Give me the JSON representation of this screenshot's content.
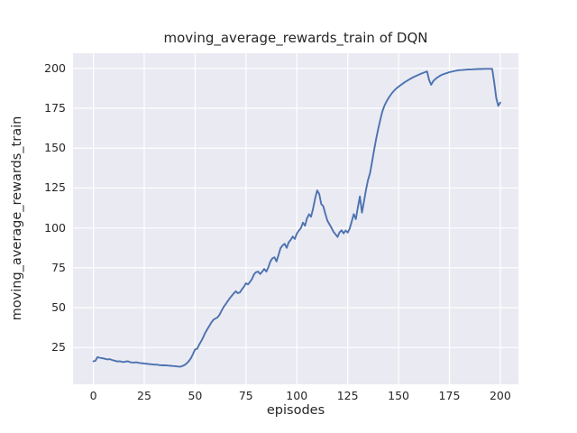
{
  "colors": {
    "line": "#4c72b0",
    "axes_background": "#eaeaf2",
    "grid": "#ffffff",
    "text": "#262626"
  },
  "chart_data": {
    "type": "line",
    "title": "moving_average_rewards_train of DQN",
    "xlabel": "episodes",
    "ylabel": "moving_average_rewards_train",
    "xticks": [
      0,
      25,
      50,
      75,
      100,
      125,
      150,
      175,
      200
    ],
    "yticks": [
      25,
      50,
      75,
      100,
      125,
      150,
      175,
      200
    ],
    "xlim": [
      -10,
      208.9
    ],
    "ylim": [
      2,
      209.5
    ],
    "grid": true,
    "legend_position": "none",
    "series": [
      {
        "name": "moving_average_rewards_train",
        "color": "#4c72b0",
        "points": [
          [
            0,
            16.4
          ],
          [
            1,
            16.7
          ],
          [
            2,
            19.0
          ],
          [
            3,
            18.7
          ],
          [
            4,
            18.4
          ],
          [
            5,
            18.2
          ],
          [
            6,
            17.9
          ],
          [
            7,
            17.6
          ],
          [
            8,
            17.8
          ],
          [
            9,
            17.3
          ],
          [
            10,
            16.9
          ],
          [
            11,
            16.6
          ],
          [
            12,
            16.3
          ],
          [
            13,
            16.5
          ],
          [
            14,
            16.1
          ],
          [
            15,
            15.9
          ],
          [
            16,
            16.3
          ],
          [
            17,
            16.4
          ],
          [
            18,
            15.9
          ],
          [
            19,
            15.7
          ],
          [
            20,
            15.6
          ],
          [
            21,
            15.8
          ],
          [
            22,
            15.5
          ],
          [
            23,
            15.3
          ],
          [
            24,
            15.2
          ],
          [
            25,
            15.0
          ],
          [
            26,
            14.9
          ],
          [
            27,
            14.7
          ],
          [
            28,
            14.6
          ],
          [
            29,
            14.5
          ],
          [
            30,
            14.3
          ],
          [
            31,
            14.3
          ],
          [
            32,
            14.1
          ],
          [
            33,
            14.0
          ],
          [
            34,
            13.9
          ],
          [
            35,
            13.9
          ],
          [
            36,
            13.8
          ],
          [
            37,
            13.7
          ],
          [
            38,
            13.6
          ],
          [
            39,
            13.5
          ],
          [
            40,
            13.4
          ],
          [
            41,
            13.2
          ],
          [
            42,
            13.1
          ],
          [
            43,
            13.1
          ],
          [
            44,
            13.6
          ],
          [
            45,
            14.2
          ],
          [
            46,
            15.3
          ],
          [
            47,
            16.6
          ],
          [
            48,
            18.5
          ],
          [
            49,
            21.0
          ],
          [
            50,
            23.9
          ],
          [
            51,
            24.3
          ],
          [
            52,
            26.8
          ],
          [
            53,
            29.0
          ],
          [
            54,
            31.5
          ],
          [
            55,
            34.3
          ],
          [
            56,
            36.5
          ],
          [
            57,
            38.6
          ],
          [
            58,
            40.8
          ],
          [
            59,
            42.4
          ],
          [
            60,
            43.2
          ],
          [
            61,
            43.9
          ],
          [
            62,
            45.6
          ],
          [
            63,
            48.0
          ],
          [
            64,
            50.4
          ],
          [
            65,
            52.2
          ],
          [
            66,
            54.0
          ],
          [
            67,
            55.9
          ],
          [
            68,
            57.4
          ],
          [
            69,
            59.0
          ],
          [
            70,
            60.3
          ],
          [
            71,
            59.1
          ],
          [
            72,
            59.6
          ],
          [
            73,
            61.5
          ],
          [
            74,
            63.2
          ],
          [
            75,
            65.3
          ],
          [
            76,
            64.6
          ],
          [
            77,
            66.2
          ],
          [
            78,
            68.1
          ],
          [
            79,
            71.0
          ],
          [
            80,
            72.3
          ],
          [
            81,
            72.6
          ],
          [
            82,
            71.1
          ],
          [
            83,
            72.6
          ],
          [
            84,
            74.3
          ],
          [
            85,
            72.6
          ],
          [
            86,
            75.2
          ],
          [
            87,
            79.0
          ],
          [
            88,
            81.0
          ],
          [
            89,
            81.6
          ],
          [
            90,
            79.0
          ],
          [
            91,
            83.0
          ],
          [
            92,
            87.4
          ],
          [
            93,
            89.0
          ],
          [
            94,
            90.1
          ],
          [
            95,
            87.5
          ],
          [
            96,
            91.0
          ],
          [
            97,
            92.6
          ],
          [
            98,
            94.6
          ],
          [
            99,
            93.1
          ],
          [
            100,
            96.4
          ],
          [
            101,
            98.3
          ],
          [
            102,
            100.0
          ],
          [
            103,
            103.3
          ],
          [
            104,
            101.4
          ],
          [
            105,
            106.0
          ],
          [
            106,
            108.6
          ],
          [
            107,
            107.0
          ],
          [
            108,
            112.2
          ],
          [
            109,
            118.6
          ],
          [
            110,
            123.5
          ],
          [
            111,
            121.3
          ],
          [
            112,
            115.0
          ],
          [
            113,
            113.6
          ],
          [
            114,
            109.0
          ],
          [
            115,
            104.6
          ],
          [
            116,
            102.4
          ],
          [
            117,
            100.1
          ],
          [
            118,
            97.6
          ],
          [
            119,
            96.0
          ],
          [
            120,
            94.4
          ],
          [
            121,
            97.2
          ],
          [
            122,
            98.5
          ],
          [
            123,
            96.6
          ],
          [
            124,
            98.4
          ],
          [
            125,
            97.1
          ],
          [
            126,
            99.6
          ],
          [
            127,
            104.2
          ],
          [
            128,
            108.7
          ],
          [
            129,
            105.5
          ],
          [
            130,
            112.8
          ],
          [
            131,
            119.8
          ],
          [
            132,
            109.6
          ],
          [
            133,
            116.5
          ],
          [
            134,
            124.0
          ],
          [
            135,
            130.0
          ],
          [
            136,
            134.5
          ],
          [
            137,
            141.5
          ],
          [
            138,
            149.0
          ],
          [
            139,
            156.0
          ],
          [
            140,
            162.0
          ],
          [
            141,
            167.8
          ],
          [
            142,
            172.8
          ],
          [
            143,
            176.4
          ],
          [
            144,
            179.0
          ],
          [
            145,
            181.3
          ],
          [
            146,
            183.2
          ],
          [
            147,
            184.9
          ],
          [
            148,
            186.3
          ],
          [
            149,
            187.5
          ],
          [
            150,
            188.5
          ],
          [
            151,
            189.5
          ],
          [
            152,
            190.4
          ],
          [
            153,
            191.3
          ],
          [
            154,
            192.1
          ],
          [
            155,
            192.9
          ],
          [
            156,
            193.6
          ],
          [
            157,
            194.3
          ],
          [
            158,
            194.9
          ],
          [
            159,
            195.5
          ],
          [
            160,
            196.1
          ],
          [
            161,
            196.6
          ],
          [
            162,
            197.1
          ],
          [
            163,
            197.6
          ],
          [
            164,
            198.1
          ],
          [
            165,
            192.8
          ],
          [
            166,
            189.7
          ],
          [
            167,
            191.9
          ],
          [
            168,
            193.2
          ],
          [
            169,
            194.3
          ],
          [
            170,
            195.1
          ],
          [
            171,
            195.8
          ],
          [
            172,
            196.3
          ],
          [
            173,
            196.8
          ],
          [
            174,
            197.2
          ],
          [
            175,
            197.6
          ],
          [
            176,
            197.9
          ],
          [
            177,
            198.2
          ],
          [
            178,
            198.5
          ],
          [
            179,
            198.7
          ],
          [
            180,
            198.9
          ],
          [
            181,
            199.0
          ],
          [
            182,
            199.1
          ],
          [
            183,
            199.2
          ],
          [
            184,
            199.3
          ],
          [
            185,
            199.4
          ],
          [
            186,
            199.4
          ],
          [
            187,
            199.5
          ],
          [
            188,
            199.5
          ],
          [
            189,
            199.6
          ],
          [
            190,
            199.6
          ],
          [
            191,
            199.6
          ],
          [
            192,
            199.7
          ],
          [
            193,
            199.7
          ],
          [
            194,
            199.7
          ],
          [
            195,
            199.7
          ],
          [
            196,
            199.7
          ],
          [
            197,
            191.5
          ],
          [
            198,
            181.5
          ],
          [
            199,
            176.5
          ],
          [
            200,
            178.6
          ]
        ]
      }
    ]
  }
}
